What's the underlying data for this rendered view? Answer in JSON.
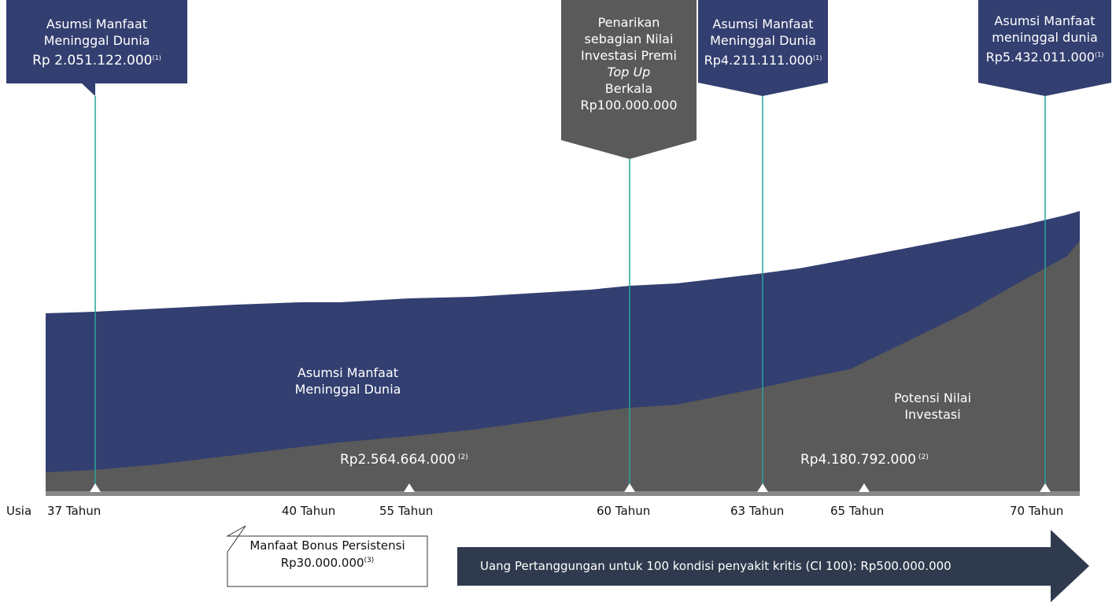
{
  "colors": {
    "navy": "#333f70",
    "gray": "#5a5a5a",
    "teal": "#2aa39a",
    "axis": "#888888",
    "arrow": "#2f3a4e"
  },
  "callouts": {
    "c37": {
      "line1": "Asumsi Manfaat",
      "line2": "Meninggal Dunia",
      "amount": "Rp 2.051.122.000",
      "note": "(1)"
    },
    "c60": {
      "line1": "Penarikan",
      "line2": "sebagian Nilai",
      "line3": "Investasi Premi",
      "line4": "Top Up",
      "line5": "Berkala",
      "amount": "Rp100.000.000"
    },
    "c63": {
      "line1": "Asumsi Manfaat",
      "line2": "Meninggal Dunia",
      "amount": "Rp4.211.111.000",
      "note": "(1)"
    },
    "c70": {
      "line1": "Asumsi Manfaat",
      "line2": "meninggal dunia",
      "amount": "Rp5.432.011.000",
      "note": "(1)"
    }
  },
  "areas": {
    "death_label_line1": "Asumsi Manfaat",
    "death_label_line2": "Meninggal Dunia",
    "investment_label_line1": "Potensi  Nilai",
    "investment_label_line2": "Investasi",
    "value_55": "Rp2.564.664.000",
    "value_55_note": "(2)",
    "value_65": "Rp4.180.792.000",
    "value_65_note": "(2)"
  },
  "axis": {
    "usia": "Usia",
    "ticks": [
      "37 Tahun",
      "40 Tahun",
      "55 Tahun",
      "60 Tahun",
      "63 Tahun",
      "65 Tahun",
      "70 Tahun"
    ]
  },
  "bonus": {
    "line1": "Manfaat Bonus Persistensi",
    "amount": "Rp30.000.000",
    "note": "(3)"
  },
  "arrow": {
    "text": "Uang Pertanggungan untuk 100 kondisi penyakit kritis (CI 100): Rp500.000.000"
  }
}
